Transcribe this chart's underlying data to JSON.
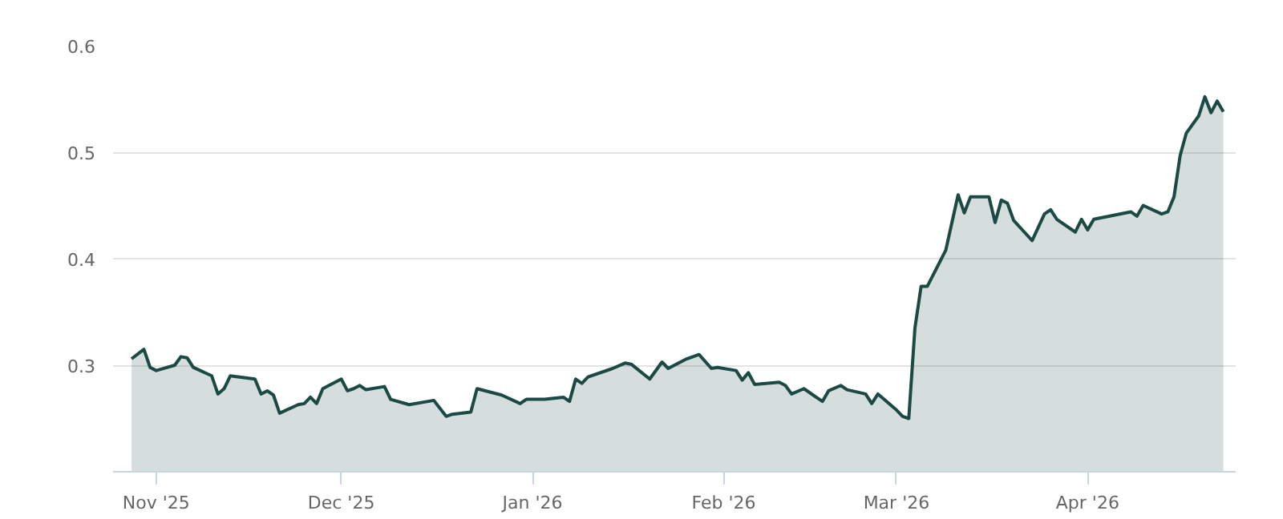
{
  "chart_data": {
    "type": "area",
    "x": [
      "2025-10-28",
      "2025-10-30",
      "2025-10-31",
      "2025-11-01",
      "2025-11-04",
      "2025-11-05",
      "2025-11-06",
      "2025-11-07",
      "2025-11-10",
      "2025-11-11",
      "2025-11-12",
      "2025-11-13",
      "2025-11-17",
      "2025-11-18",
      "2025-11-19",
      "2025-11-20",
      "2025-11-21",
      "2025-11-24",
      "2025-11-25",
      "2025-11-26",
      "2025-11-27",
      "2025-11-28",
      "2025-12-01",
      "2025-12-02",
      "2025-12-03",
      "2025-12-04",
      "2025-12-05",
      "2025-12-08",
      "2025-12-09",
      "2025-12-12",
      "2025-12-16",
      "2025-12-18",
      "2025-12-19",
      "2025-12-22",
      "2025-12-23",
      "2025-12-27",
      "2025-12-30",
      "2025-12-31",
      "2026-01-03",
      "2026-01-06",
      "2026-01-07",
      "2026-01-08",
      "2026-01-09",
      "2026-01-10",
      "2026-01-14",
      "2026-01-16",
      "2026-01-17",
      "2026-01-20",
      "2026-01-22",
      "2026-01-23",
      "2026-01-26",
      "2026-01-28",
      "2026-01-30",
      "2026-01-31",
      "2026-02-03",
      "2026-02-04",
      "2026-02-05",
      "2026-02-06",
      "2026-02-10",
      "2026-02-11",
      "2026-02-12",
      "2026-02-14",
      "2026-02-17",
      "2026-02-18",
      "2026-02-20",
      "2026-02-21",
      "2026-02-24",
      "2026-02-25",
      "2026-02-26",
      "2026-02-27",
      "2026-03-01",
      "2026-03-02",
      "2026-03-03",
      "2026-03-04",
      "2026-03-05",
      "2026-03-06",
      "2026-03-09",
      "2026-03-10",
      "2026-03-11",
      "2026-03-12",
      "2026-03-13",
      "2026-03-16",
      "2026-03-17",
      "2026-03-18",
      "2026-03-19",
      "2026-03-20",
      "2026-03-23",
      "2026-03-25",
      "2026-03-26",
      "2026-03-27",
      "2026-03-30",
      "2026-03-31",
      "2026-04-01",
      "2026-04-02",
      "2026-04-08",
      "2026-04-09",
      "2026-04-10",
      "2026-04-13",
      "2026-04-14",
      "2026-04-15",
      "2026-04-16",
      "2026-04-17",
      "2026-04-19",
      "2026-04-20",
      "2026-04-21",
      "2026-04-22",
      "2026-04-23"
    ],
    "series": [
      {
        "color": "#1b4a45",
        "values": [
          0.306,
          0.315,
          0.298,
          0.295,
          0.3,
          0.308,
          0.307,
          0.298,
          0.29,
          0.273,
          0.278,
          0.29,
          0.287,
          0.273,
          0.276,
          0.272,
          0.255,
          0.263,
          0.264,
          0.27,
          0.264,
          0.278,
          0.287,
          0.276,
          0.278,
          0.281,
          0.277,
          0.28,
          0.268,
          0.263,
          0.267,
          0.252,
          0.254,
          0.256,
          0.278,
          0.272,
          0.264,
          0.268,
          0.268,
          0.27,
          0.266,
          0.287,
          0.283,
          0.289,
          0.297,
          0.302,
          0.301,
          0.287,
          0.303,
          0.297,
          0.306,
          0.31,
          0.297,
          0.298,
          0.295,
          0.286,
          0.293,
          0.282,
          0.284,
          0.281,
          0.273,
          0.278,
          0.266,
          0.276,
          0.281,
          0.277,
          0.273,
          0.264,
          0.273,
          0.268,
          0.258,
          0.252,
          0.25,
          0.335,
          0.374,
          0.374,
          0.408,
          0.434,
          0.46,
          0.443,
          0.458,
          0.458,
          0.434,
          0.455,
          0.452,
          0.436,
          0.417,
          0.442,
          0.446,
          0.437,
          0.425,
          0.437,
          0.427,
          0.437,
          0.444,
          0.44,
          0.45,
          0.442,
          0.444,
          0.458,
          0.497,
          0.518,
          0.534,
          0.552,
          0.537,
          0.548,
          0.538
        ]
      }
    ],
    "xlim": [
      "2025-10-25",
      "2026-04-25"
    ],
    "xticks": [
      {
        "value": "2025-11-01",
        "label": "Nov '25"
      },
      {
        "value": "2025-12-01",
        "label": "Dec '25"
      },
      {
        "value": "2026-01-01",
        "label": "Jan '26"
      },
      {
        "value": "2026-02-01",
        "label": "Feb '26"
      },
      {
        "value": "2026-03-01",
        "label": "Mar '26"
      },
      {
        "value": "2026-04-01",
        "label": "Apr '26"
      }
    ],
    "ylim": [
      0.2,
      0.6
    ],
    "yticks": [
      0.3,
      0.4,
      0.5,
      0.6
    ],
    "grid": "y"
  }
}
